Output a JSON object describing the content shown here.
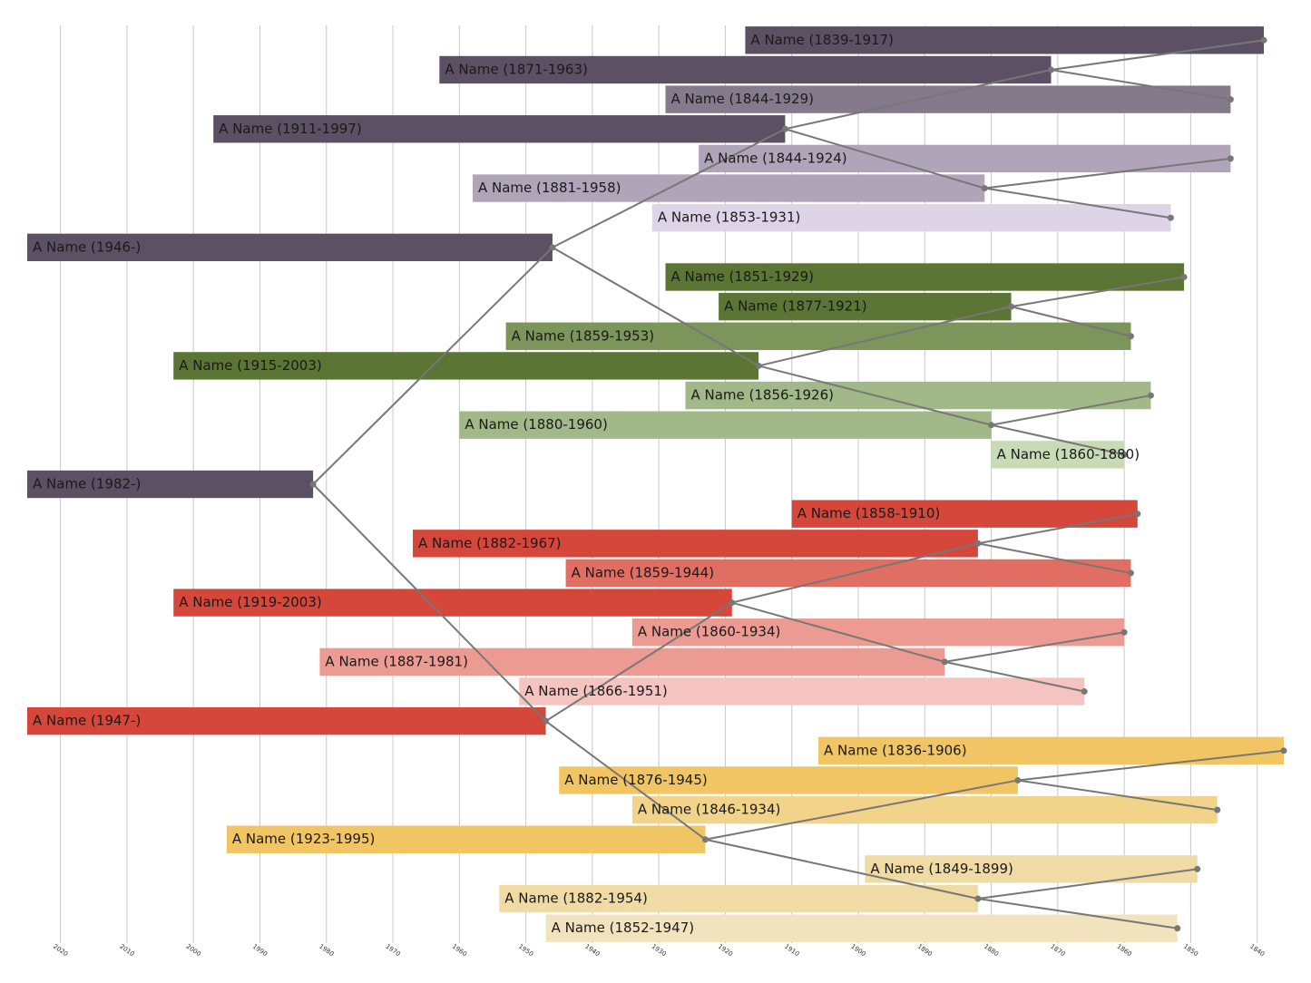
{
  "chart_data": {
    "type": "timeline",
    "xlim": [
      2025,
      1836
    ],
    "xticks": [
      2020,
      2010,
      2000,
      1990,
      1980,
      1970,
      1960,
      1950,
      1940,
      1930,
      1920,
      1910,
      1900,
      1890,
      1880,
      1870,
      1860,
      1850,
      1840
    ],
    "grid": true,
    "line_color": "#777777",
    "people": [
      {
        "label": "A Name (1839-1917)",
        "birth": 1839,
        "death": 1917,
        "color": "#5c5064"
      },
      {
        "label": "A Name (1871-1963)",
        "birth": 1871,
        "death": 1963,
        "color": "#5c5064"
      },
      {
        "label": "A Name (1844-1929)",
        "birth": 1844,
        "death": 1929,
        "color": "#857a8c"
      },
      {
        "label": "A Name (1911-1997)",
        "birth": 1911,
        "death": 1997,
        "color": "#5c5064"
      },
      {
        "label": "A Name (1844-1924)",
        "birth": 1844,
        "death": 1924,
        "color": "#b0a4b8"
      },
      {
        "label": "A Name (1881-1958)",
        "birth": 1881,
        "death": 1958,
        "color": "#b0a4b8"
      },
      {
        "label": "A Name (1853-1931)",
        "birth": 1853,
        "death": 1931,
        "color": "#ded4e8"
      },
      {
        "label": "A Name (1946-)",
        "birth": 1946,
        "death": null,
        "color": "#5c5064"
      },
      {
        "label": "A Name (1851-1929)",
        "birth": 1851,
        "death": 1929,
        "color": "#5a7534"
      },
      {
        "label": "A Name (1877-1921)",
        "birth": 1877,
        "death": 1921,
        "color": "#5a7534"
      },
      {
        "label": "A Name (1859-1953)",
        "birth": 1859,
        "death": 1953,
        "color": "#7b955a"
      },
      {
        "label": "A Name (1915-2003)",
        "birth": 1915,
        "death": 2003,
        "color": "#5a7534"
      },
      {
        "label": "A Name (1856-1926)",
        "birth": 1856,
        "death": 1926,
        "color": "#a1b888"
      },
      {
        "label": "A Name (1880-1960)",
        "birth": 1880,
        "death": 1960,
        "color": "#a1b888"
      },
      {
        "label": "A Name (1860-1880)",
        "birth": 1860,
        "death": 1880,
        "color": "#c9dbb6"
      },
      {
        "label": "A Name (1982-)",
        "birth": 1982,
        "death": null,
        "color": "#5c5064"
      },
      {
        "label": "A Name (1858-1910)",
        "birth": 1858,
        "death": 1910,
        "color": "#d5473a"
      },
      {
        "label": "A Name (1882-1967)",
        "birth": 1882,
        "death": 1967,
        "color": "#d5473a"
      },
      {
        "label": "A Name (1859-1944)",
        "birth": 1859,
        "death": 1944,
        "color": "#e06e62"
      },
      {
        "label": "A Name (1919-2003)",
        "birth": 1919,
        "death": 2003,
        "color": "#d5473a"
      },
      {
        "label": "A Name (1860-1934)",
        "birth": 1860,
        "death": 1934,
        "color": "#ec9b93"
      },
      {
        "label": "A Name (1887-1981)",
        "birth": 1887,
        "death": 1981,
        "color": "#ec9b93"
      },
      {
        "label": "A Name (1866-1951)",
        "birth": 1866,
        "death": 1951,
        "color": "#f5c4c0"
      },
      {
        "label": "A Name (1947-)",
        "birth": 1947,
        "death": null,
        "color": "#d5473a"
      },
      {
        "label": "A Name (1836-1906)",
        "birth": 1836,
        "death": 1906,
        "color": "#f2c564"
      },
      {
        "label": "A Name (1876-1945)",
        "birth": 1876,
        "death": 1945,
        "color": "#f2c564"
      },
      {
        "label": "A Name (1846-1934)",
        "birth": 1846,
        "death": 1934,
        "color": "#f2d38a"
      },
      {
        "label": "A Name (1923-1995)",
        "birth": 1923,
        "death": 1995,
        "color": "#f2c564"
      },
      {
        "label": "A Name (1849-1899)",
        "birth": 1849,
        "death": 1899,
        "color": "#f0dba4"
      },
      {
        "label": "A Name (1882-1954)",
        "birth": 1882,
        "death": 1954,
        "color": "#f0dba4"
      },
      {
        "label": "A Name (1852-1947)",
        "birth": 1852,
        "death": 1947,
        "color": "#f2e3bf"
      }
    ]
  }
}
